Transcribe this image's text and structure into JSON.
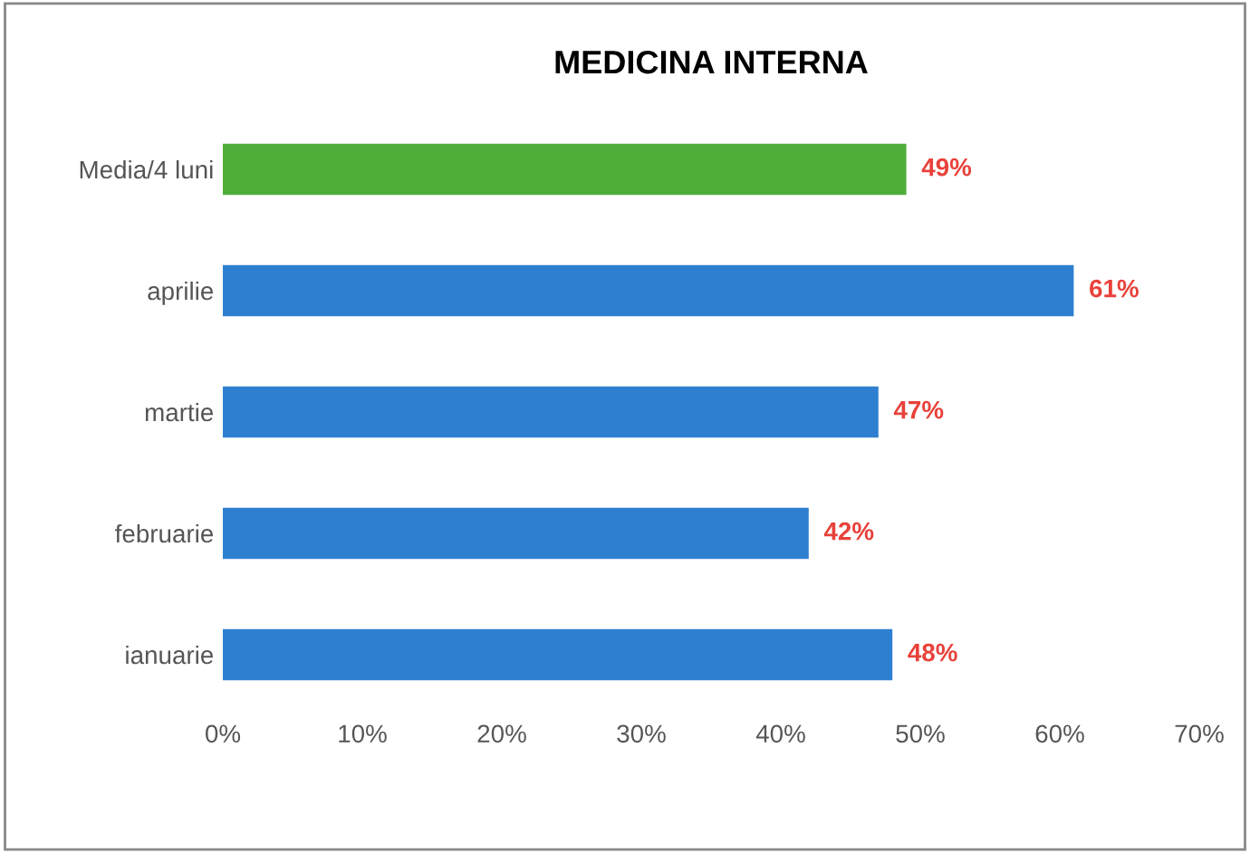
{
  "chart_data": {
    "type": "bar",
    "orientation": "horizontal",
    "title": "MEDICINA INTERNA",
    "categories": [
      "Media/4 luni",
      "aprilie",
      "martie",
      "februarie",
      "ianuarie"
    ],
    "values": [
      49,
      61,
      47,
      42,
      48
    ],
    "colors": [
      "#4eae3a",
      "#2f7fd0",
      "#2f7fd0",
      "#2f7fd0",
      "#2f7fd0"
    ],
    "value_labels": [
      "49%",
      "61%",
      "47%",
      "42%",
      "48%"
    ],
    "xlim": [
      0,
      70
    ],
    "xticks": [
      {
        "value": 0,
        "label": "0%"
      },
      {
        "value": 10,
        "label": "10%"
      },
      {
        "value": 20,
        "label": "20%"
      },
      {
        "value": 30,
        "label": "30%"
      },
      {
        "value": 40,
        "label": "40%"
      },
      {
        "value": 50,
        "label": "50%"
      },
      {
        "value": 60,
        "label": "60%"
      },
      {
        "value": 70,
        "label": "70%"
      }
    ],
    "grid": false,
    "legend": false
  }
}
